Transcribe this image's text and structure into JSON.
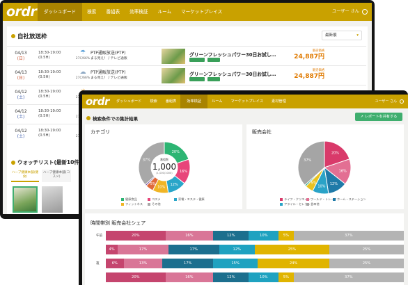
{
  "back": {
    "logo": "ordr",
    "nav": [
      "ダッシュボード",
      "検索",
      "番組表",
      "効率検証",
      "ルーム",
      "マーケットプレイス"
    ],
    "user": "ユーザー さん",
    "section_title": "自社放送枠",
    "sort_value": "最新順",
    "rows": [
      {
        "date": "04/13",
        "dow": "(日)",
        "time": "18:30-19:00",
        "dur": "(0.5H)",
        "weather_icon": "rain-cloud-icon",
        "weather_glyph": "☂",
        "temp": "27C/66%",
        "program": "PTP通販放送(PTP)",
        "sub": "まる見え！ / テレビ通販",
        "product": "グリーンフレッシュパワー30日お試し…",
        "price_label": "販売価格",
        "price": "24,887円"
      },
      {
        "date": "04/13",
        "dow": "(日)",
        "time": "18:30-19:00",
        "dur": "(0.5H)",
        "weather_icon": "cloud-icon",
        "weather_glyph": "☁",
        "temp": "27C/66%",
        "program": "PTP通販放送(PTP)",
        "sub": "まる見え！ / テレビ通販",
        "product": "グリーンフレッシュパワー30日お試し…",
        "price_label": "販売価格",
        "price": "24,887円"
      },
      {
        "date": "04/12",
        "dow": "(土)",
        "time": "18:30-19:00",
        "dur": "(0.5H)",
        "weather_icon": "sun-icon",
        "weather_glyph": "☀",
        "temp": "27C/66%",
        "program": "",
        "sub": "",
        "product": "",
        "price_label": "",
        "price": ""
      },
      {
        "date": "04/12",
        "dow": "(土)",
        "time": "18:30-19:00",
        "dur": "(0.5H)",
        "weather_icon": "snow-icon",
        "weather_glyph": "❄",
        "temp": "27C/66%",
        "program": "",
        "sub": "",
        "product": "",
        "price_label": "",
        "price": ""
      },
      {
        "date": "04/12",
        "dow": "(土)",
        "time": "18:30-19:00",
        "dur": "(0.5H)",
        "weather_icon": "sun-icon",
        "weather_glyph": "☀",
        "temp": "27C/66%",
        "program": "",
        "sub": "",
        "product": "",
        "price_label": "",
        "price": ""
      }
    ],
    "watch_title": "ウォッチリスト(最新10件)",
    "watch_tabs": [
      "ハーブ健康本舗(健食)",
      "ハーブ健康本舗(コスメ)"
    ]
  },
  "front": {
    "logo": "ordr",
    "nav": [
      "ダッシュボード",
      "検索",
      "番組表",
      "効率検証",
      "ルーム",
      "マーケットプレイス",
      "素材管理"
    ],
    "user": "ユーザー さん",
    "page_title": "検索条件での集計結果",
    "report_button": "レポートを共有する",
    "category_title": "カテゴリ",
    "donut_center_label": "番組数",
    "donut_center_value": "1,000",
    "donut_center_sub": "(1,000/1000)",
    "seller_title": "販売会社",
    "timebar_title": "時間帯別 販売会社シェア",
    "colors": {
      "accent": "#c9a100",
      "green": "#3fae6e"
    }
  },
  "chart_data": [
    {
      "type": "pie",
      "title": "カテゴリ",
      "slices": [
        {
          "label": "健康食品",
          "value": 20,
          "color": "#2db573"
        },
        {
          "label": "コスメ",
          "value": 16,
          "color": "#e8457a"
        },
        {
          "label": "家電・エステ・健康",
          "value": 12,
          "color": "#2aa6c9"
        },
        {
          "label": "フィットネス",
          "value": 10,
          "color": "#f0b526"
        },
        {
          "label": "",
          "value": 5,
          "color": "#e06a3a"
        },
        {
          "label": "",
          "value": 1,
          "color": "#7a4fa0"
        },
        {
          "label": "その他",
          "value": 37,
          "color": "#a8a8a8"
        }
      ]
    },
    {
      "type": "pie",
      "title": "販売会社",
      "slices": [
        {
          "label": "ライフ・クリエイト",
          "value": 20,
          "color": "#d93a6a"
        },
        {
          "label": "ワールド・トレード",
          "value": 16,
          "color": "#e36f93"
        },
        {
          "label": "ホーム・ステーション",
          "value": 12,
          "color": "#1f7aa8"
        },
        {
          "label": "アライル・セレクション",
          "value": 10,
          "color": "#2aa3c7"
        },
        {
          "label": "",
          "value": 5,
          "color": "#e9c21f"
        },
        {
          "label": "",
          "value": 1,
          "color": "#27a884"
        },
        {
          "label": "その他",
          "value": 37,
          "color": "#a5a5a5"
        }
      ]
    },
    {
      "type": "bar",
      "stacked": true,
      "title": "時間帯別 販売会社シェア",
      "categories": [
        "午前",
        "",
        "夜",
        ""
      ],
      "series_colors": [
        "#c5456e",
        "#d97697",
        "#1c6f8e",
        "#1fa2c0",
        "#e0b400",
        "#b4b4b4"
      ],
      "rows": [
        [
          20,
          16,
          12,
          10,
          5,
          37
        ],
        [
          4,
          17,
          17,
          12,
          25,
          25
        ],
        [
          6,
          13,
          17,
          15,
          24,
          25
        ],
        [
          20,
          16,
          12,
          10,
          5,
          37
        ]
      ]
    }
  ]
}
